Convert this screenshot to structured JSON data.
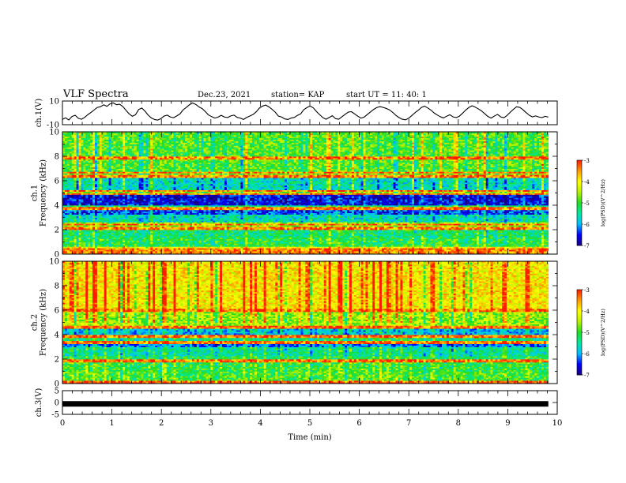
{
  "header": {
    "title": "VLF Spectra",
    "date": "Dec.23, 2021",
    "station": "station= KAP",
    "start": "start  UT =   11: 40: 1"
  },
  "colors": {
    "colormap": [
      "#1a0080",
      "#0000ff",
      "#00bfff",
      "#00e8a0",
      "#22dd22",
      "#b8f000",
      "#ffff00",
      "#ff9900",
      "#ff1a00",
      "#ffffff"
    ]
  },
  "chart_data": [
    {
      "type": "line",
      "ylabel": "ch.1(V)",
      "ylim": [
        -10,
        10
      ],
      "yticks": [
        "10",
        "-10"
      ],
      "xlim": [
        0,
        10
      ],
      "x_start": 0,
      "x_end": 9.82,
      "values": [
        -5.5,
        -4.2,
        -6.0,
        -3.1,
        -2.0,
        -4.6,
        -5.4,
        -3.8,
        -1.5,
        0.4,
        2.5,
        4.6,
        5.2,
        6.8,
        5.5,
        7.6,
        8.4,
        6.9,
        7.3,
        5.4,
        2.2,
        -0.8,
        -2.9,
        -1.6,
        2.8,
        4.1,
        1.4,
        -1.9,
        -4.3,
        -5.6,
        -6.1,
        -4.9,
        -2.7,
        -1.9,
        -3.5,
        -4.1,
        -2.6,
        -0.9,
        2.5,
        4.6,
        6.9,
        8.3,
        7.1,
        5.0,
        3.6,
        1.1,
        -1.8,
        -3.2,
        -4.4,
        -3.6,
        -2.1,
        -3.5,
        -4.0,
        -2.6,
        -1.9,
        -3.8,
        -4.4,
        -5.6,
        -3.9,
        -2.7,
        -1.4,
        0.8,
        4.0,
        5.7,
        6.6,
        5.1,
        3.0,
        0.6,
        -2.7,
        -3.5,
        -5.1,
        -5.6,
        -4.4,
        -3.9,
        -2.1,
        -0.9,
        2.7,
        4.5,
        5.8,
        4.2,
        1.1,
        -1.6,
        -4.0,
        -5.4,
        -3.9,
        -2.4,
        -4.9,
        -5.4,
        -3.3,
        -1.3,
        0.6,
        1.0,
        -0.9,
        -2.8,
        -4.5,
        -3.6,
        -1.4,
        0.8,
        2.9,
        4.5,
        5.3,
        4.6,
        3.7,
        2.5,
        0.4,
        -2.1,
        -4.0,
        -5.4,
        -5.9,
        -4.6,
        -2.3,
        0.1,
        2.1,
        4.5,
        5.7,
        4.2,
        2.4,
        0.0,
        -1.8,
        -3.3,
        -4.3,
        -2.8,
        -1.6,
        -3.4,
        -4.0,
        -2.8,
        -0.3,
        2.4,
        4.6,
        6.0,
        4.8,
        3.3,
        1.6,
        -0.8,
        -3.1,
        -4.4,
        -2.7,
        -1.3,
        -3.4,
        -4.1,
        -2.2,
        0.5,
        3.0,
        5.1,
        4.6,
        2.7,
        0.2,
        -2.0,
        -3.4,
        -2.6,
        -3.5,
        -4.0,
        -2.9,
        -3.6
      ]
    },
    {
      "type": "heatmap",
      "ylabel": "ch.1\nFrequency (kHz)",
      "ylim": [
        0,
        10
      ],
      "yticks": [
        "0",
        "2",
        "4",
        "6",
        "8",
        "10"
      ],
      "xlim": [
        0,
        10
      ],
      "x_start": 0,
      "x_end": 9.82,
      "colorbar": {
        "label": "log(PSD)(V^2/Hz)",
        "range": [
          -7,
          -3
        ],
        "ticks": [
          "-3",
          "-4",
          "-5",
          "-6",
          "-7"
        ]
      },
      "bands_khz": [
        [
          0,
          0.2,
          -3.4
        ],
        [
          0.2,
          0.6,
          -4.1
        ],
        [
          0.6,
          1.4,
          -5.1
        ],
        [
          1.4,
          2.2,
          -5.3
        ],
        [
          2.2,
          2.6,
          -4.6
        ],
        [
          2.6,
          3.2,
          -5.6
        ],
        [
          3.2,
          3.7,
          -6.3
        ],
        [
          3.7,
          4.0,
          -5.3
        ],
        [
          4.0,
          4.9,
          -6.6
        ],
        [
          4.9,
          5.3,
          -4.6
        ],
        [
          5.3,
          6.3,
          -5.6
        ],
        [
          6.3,
          6.8,
          -4.7
        ],
        [
          6.8,
          10,
          -4.9
        ]
      ],
      "lines_khz": [
        0.3,
        0.45,
        2.15,
        2.45,
        3.75,
        4.95,
        5.2,
        6.35,
        6.7,
        7.9
      ]
    },
    {
      "type": "heatmap",
      "ylabel": "ch.2\nFrequency (kHz)",
      "ylim": [
        0,
        10
      ],
      "yticks": [
        "0",
        "2",
        "4",
        "6",
        "8",
        "10"
      ],
      "xlim": [
        0,
        10
      ],
      "x_start": 0,
      "x_end": 9.82,
      "colorbar": {
        "label": "log(PSD)(V^2/Hz)",
        "range": [
          -7,
          -3
        ],
        "ticks": [
          "-3",
          "-4",
          "-5",
          "-6",
          "-7"
        ]
      },
      "bands_khz": [
        [
          0,
          0.3,
          -3.2
        ],
        [
          0.3,
          1.0,
          -5.0
        ],
        [
          1.0,
          2.0,
          -5.1
        ],
        [
          2.0,
          2.3,
          -5.2
        ],
        [
          2.3,
          3.0,
          -5.5
        ],
        [
          3.0,
          3.4,
          -6.2
        ],
        [
          3.4,
          4.0,
          -5.4
        ],
        [
          4.0,
          4.6,
          -5.9
        ],
        [
          4.6,
          6.0,
          -4.6
        ],
        [
          6.0,
          10,
          -4.0
        ]
      ],
      "lines_khz": [
        0.2,
        1.9,
        3.4,
        3.9,
        4.6,
        6.0
      ]
    },
    {
      "type": "line",
      "ylabel": "ch.3(V)",
      "xlabel": "Time (min)",
      "ylim": [
        -5,
        5
      ],
      "yticks": [
        "5",
        "0",
        "-5"
      ],
      "xlim": [
        0,
        10
      ],
      "xticks": [
        "0",
        "1",
        "2",
        "3",
        "4",
        "5",
        "6",
        "7",
        "8",
        "9",
        "10"
      ],
      "x_start": 0,
      "x_end": 9.82,
      "values": [
        -0.6,
        -0.6
      ]
    }
  ]
}
